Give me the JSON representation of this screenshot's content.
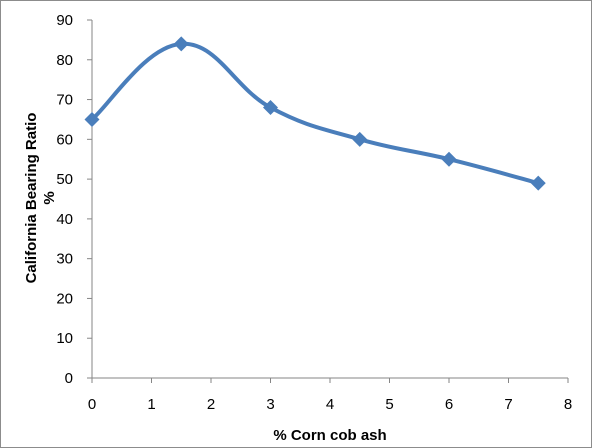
{
  "chart_data": {
    "type": "line",
    "title": "",
    "xlabel": "% Corn cob ash",
    "ylabel_line1": "California Bearing Ratio",
    "ylabel_line2": "%",
    "x": [
      0,
      1.5,
      3,
      4.5,
      6,
      7.5
    ],
    "series": [
      {
        "values": [
          65,
          84,
          68,
          60,
          55,
          49
        ]
      }
    ],
    "xlim": [
      0,
      8
    ],
    "ylim": [
      0,
      90
    ],
    "xticks": [
      0,
      1,
      2,
      3,
      4,
      5,
      6,
      7,
      8
    ],
    "yticks": [
      0,
      10,
      20,
      30,
      40,
      50,
      60,
      70,
      80,
      90
    ],
    "smooth": true,
    "marker": "diamond",
    "grid": false,
    "legend": "none",
    "colors": {
      "series": "#4a7ebb",
      "marker": "#4a7ebb",
      "axis": "#868686"
    }
  }
}
